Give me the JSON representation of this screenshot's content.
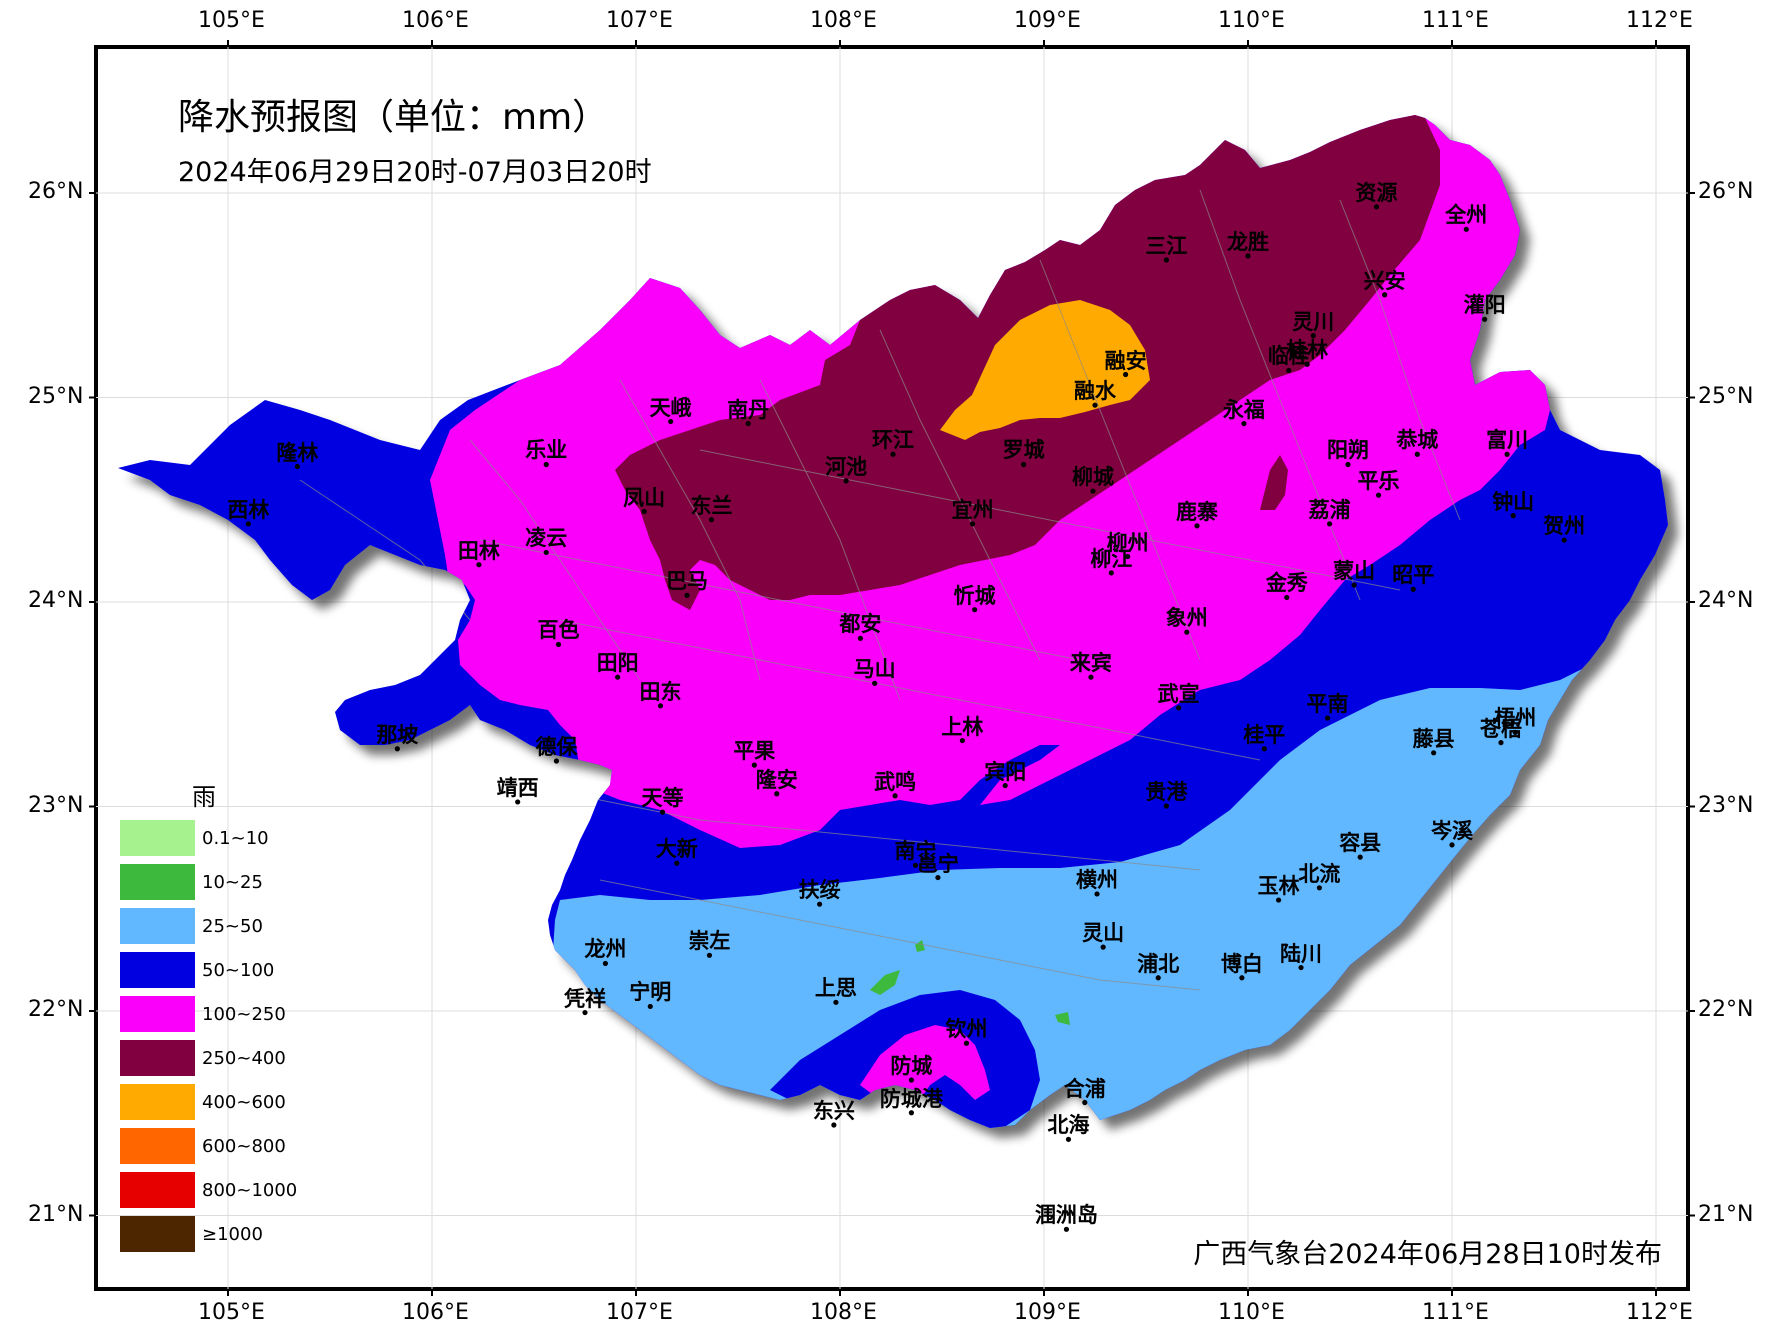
{
  "title": "降水预报图（单位：mm）",
  "period": "2024年06月29日20时-07月03日20时",
  "issuer": "广西气象台2024年06月28日10时发布",
  "legend": {
    "title": "雨",
    "items": [
      {
        "label": "0.1~10",
        "color": "#a6f28f"
      },
      {
        "label": "10~25",
        "color": "#3dba3d"
      },
      {
        "label": "25~50",
        "color": "#61b8ff"
      },
      {
        "label": "50~100",
        "color": "#0000e1"
      },
      {
        "label": "100~250",
        "color": "#fa00fa"
      },
      {
        "label": "250~400",
        "color": "#800040"
      },
      {
        "label": "400~600",
        "color": "#ffaa00"
      },
      {
        "label": "600~800",
        "color": "#ff6600"
      },
      {
        "label": "800~1000",
        "color": "#e60000"
      },
      {
        "label": "≥1000",
        "color": "#4d2600"
      }
    ]
  },
  "longitudes": [
    {
      "label": "105°E",
      "value": 105
    },
    {
      "label": "106°E",
      "value": 106
    },
    {
      "label": "107°E",
      "value": 107
    },
    {
      "label": "108°E",
      "value": 108
    },
    {
      "label": "109°E",
      "value": 109
    },
    {
      "label": "110°E",
      "value": 110
    },
    {
      "label": "111°E",
      "value": 111
    },
    {
      "label": "112°E",
      "value": 112
    }
  ],
  "latitudes": [
    {
      "label": "26°N",
      "value": 26
    },
    {
      "label": "25°N",
      "value": 25
    },
    {
      "label": "24°N",
      "value": 24
    },
    {
      "label": "23°N",
      "value": 23
    },
    {
      "label": "22°N",
      "value": 22
    },
    {
      "label": "21°N",
      "value": 21
    }
  ],
  "cities": [
    {
      "name": "资源",
      "lon": 110.63,
      "lat": 26.04
    },
    {
      "name": "全州",
      "lon": 111.07,
      "lat": 25.93
    },
    {
      "name": "三江",
      "lon": 109.6,
      "lat": 25.78
    },
    {
      "name": "龙胜",
      "lon": 110.0,
      "lat": 25.8
    },
    {
      "name": "兴安",
      "lon": 110.67,
      "lat": 25.61
    },
    {
      "name": "灌阳",
      "lon": 111.16,
      "lat": 25.49
    },
    {
      "name": "灵川",
      "lon": 110.32,
      "lat": 25.41
    },
    {
      "name": "桂林",
      "lon": 110.29,
      "lat": 25.27
    },
    {
      "name": "临桂",
      "lon": 110.2,
      "lat": 25.24
    },
    {
      "name": "融安",
      "lon": 109.4,
      "lat": 25.22
    },
    {
      "name": "融水",
      "lon": 109.25,
      "lat": 25.07
    },
    {
      "name": "永福",
      "lon": 109.98,
      "lat": 24.98
    },
    {
      "name": "天峨",
      "lon": 107.17,
      "lat": 24.99
    },
    {
      "name": "南丹",
      "lon": 107.55,
      "lat": 24.98
    },
    {
      "name": "隆林",
      "lon": 105.34,
      "lat": 24.77
    },
    {
      "name": "乐业",
      "lon": 106.56,
      "lat": 24.78
    },
    {
      "name": "环江",
      "lon": 108.26,
      "lat": 24.83
    },
    {
      "name": "罗城",
      "lon": 108.9,
      "lat": 24.78
    },
    {
      "name": "河池",
      "lon": 108.03,
      "lat": 24.7
    },
    {
      "name": "阳朔",
      "lon": 110.49,
      "lat": 24.78
    },
    {
      "name": "恭城",
      "lon": 110.83,
      "lat": 24.83
    },
    {
      "name": "富川",
      "lon": 111.27,
      "lat": 24.83
    },
    {
      "name": "平乐",
      "lon": 110.64,
      "lat": 24.63
    },
    {
      "name": "柳城",
      "lon": 109.24,
      "lat": 24.65
    },
    {
      "name": "凤山",
      "lon": 107.04,
      "lat": 24.55
    },
    {
      "name": "东兰",
      "lon": 107.37,
      "lat": 24.51
    },
    {
      "name": "西林",
      "lon": 105.1,
      "lat": 24.49
    },
    {
      "name": "宜州",
      "lon": 108.65,
      "lat": 24.49
    },
    {
      "name": "鹿寨",
      "lon": 109.75,
      "lat": 24.48
    },
    {
      "name": "荔浦",
      "lon": 110.4,
      "lat": 24.49
    },
    {
      "name": "钟山",
      "lon": 111.3,
      "lat": 24.53
    },
    {
      "name": "贺州",
      "lon": 111.55,
      "lat": 24.41
    },
    {
      "name": "凌云",
      "lon": 106.56,
      "lat": 24.35
    },
    {
      "name": "柳州",
      "lon": 109.41,
      "lat": 24.33
    },
    {
      "name": "柳江",
      "lon": 109.33,
      "lat": 24.25
    },
    {
      "name": "田林",
      "lon": 106.23,
      "lat": 24.29
    },
    {
      "name": "蒙山",
      "lon": 110.52,
      "lat": 24.19
    },
    {
      "name": "昭平",
      "lon": 110.81,
      "lat": 24.17
    },
    {
      "name": "巴马",
      "lon": 107.25,
      "lat": 24.14
    },
    {
      "name": "金秀",
      "lon": 110.19,
      "lat": 24.13
    },
    {
      "name": "忻城",
      "lon": 108.66,
      "lat": 24.07
    },
    {
      "name": "象州",
      "lon": 109.7,
      "lat": 23.96
    },
    {
      "name": "都安",
      "lon": 108.1,
      "lat": 23.93
    },
    {
      "name": "百色",
      "lon": 106.62,
      "lat": 23.9
    },
    {
      "name": "来宾",
      "lon": 109.23,
      "lat": 23.74
    },
    {
      "name": "马山",
      "lon": 108.17,
      "lat": 23.71
    },
    {
      "name": "田阳",
      "lon": 106.91,
      "lat": 23.74
    },
    {
      "name": "田东",
      "lon": 107.12,
      "lat": 23.6
    },
    {
      "name": "武宣",
      "lon": 109.66,
      "lat": 23.59
    },
    {
      "name": "平南",
      "lon": 110.39,
      "lat": 23.54
    },
    {
      "name": "那坡",
      "lon": 105.83,
      "lat": 23.39
    },
    {
      "name": "梧州",
      "lon": 111.31,
      "lat": 23.47
    },
    {
      "name": "上林",
      "lon": 108.6,
      "lat": 23.43
    },
    {
      "name": "桂平",
      "lon": 110.08,
      "lat": 23.39
    },
    {
      "name": "藤县",
      "lon": 110.91,
      "lat": 23.37
    },
    {
      "name": "苍梧",
      "lon": 111.24,
      "lat": 23.42
    },
    {
      "name": "德保",
      "lon": 106.61,
      "lat": 23.33
    },
    {
      "name": "平果",
      "lon": 107.58,
      "lat": 23.31
    },
    {
      "name": "宾阳",
      "lon": 108.81,
      "lat": 23.21
    },
    {
      "name": "靖西",
      "lon": 106.42,
      "lat": 23.13
    },
    {
      "name": "天等",
      "lon": 107.13,
      "lat": 23.08
    },
    {
      "name": "隆安",
      "lon": 107.69,
      "lat": 23.17
    },
    {
      "name": "武鸣",
      "lon": 108.27,
      "lat": 23.16
    },
    {
      "name": "贵港",
      "lon": 109.6,
      "lat": 23.11
    },
    {
      "name": "岑溪",
      "lon": 111.0,
      "lat": 22.92
    },
    {
      "name": "大新",
      "lon": 107.2,
      "lat": 22.83
    },
    {
      "name": "容县",
      "lon": 110.55,
      "lat": 22.86
    },
    {
      "name": "南宁",
      "lon": 108.37,
      "lat": 22.82
    },
    {
      "name": "邕宁",
      "lon": 108.48,
      "lat": 22.76
    },
    {
      "name": "横州",
      "lon": 109.26,
      "lat": 22.68
    },
    {
      "name": "北流",
      "lon": 110.35,
      "lat": 22.71
    },
    {
      "name": "玉林",
      "lon": 110.15,
      "lat": 22.65
    },
    {
      "name": "扶绥",
      "lon": 107.9,
      "lat": 22.63
    },
    {
      "name": "灵山",
      "lon": 109.29,
      "lat": 22.42
    },
    {
      "name": "崇左",
      "lon": 107.36,
      "lat": 22.38
    },
    {
      "name": "龙州",
      "lon": 106.85,
      "lat": 22.34
    },
    {
      "name": "浦北",
      "lon": 109.56,
      "lat": 22.27
    },
    {
      "name": "博白",
      "lon": 109.97,
      "lat": 22.27
    },
    {
      "name": "陆川",
      "lon": 110.26,
      "lat": 22.32
    },
    {
      "name": "上思",
      "lon": 107.98,
      "lat": 22.15
    },
    {
      "name": "宁明",
      "lon": 107.07,
      "lat": 22.13
    },
    {
      "name": "凭祥",
      "lon": 106.75,
      "lat": 22.1
    },
    {
      "name": "钦州",
      "lon": 108.62,
      "lat": 21.95
    },
    {
      "name": "防城",
      "lon": 108.35,
      "lat": 21.77
    },
    {
      "name": "合浦",
      "lon": 109.2,
      "lat": 21.66
    },
    {
      "name": "防城港",
      "lon": 108.35,
      "lat": 21.61
    },
    {
      "name": "东兴",
      "lon": 107.97,
      "lat": 21.55
    },
    {
      "name": "北海",
      "lon": 109.12,
      "lat": 21.48
    },
    {
      "name": "涠洲岛",
      "lon": 109.11,
      "lat": 21.04
    }
  ]
}
